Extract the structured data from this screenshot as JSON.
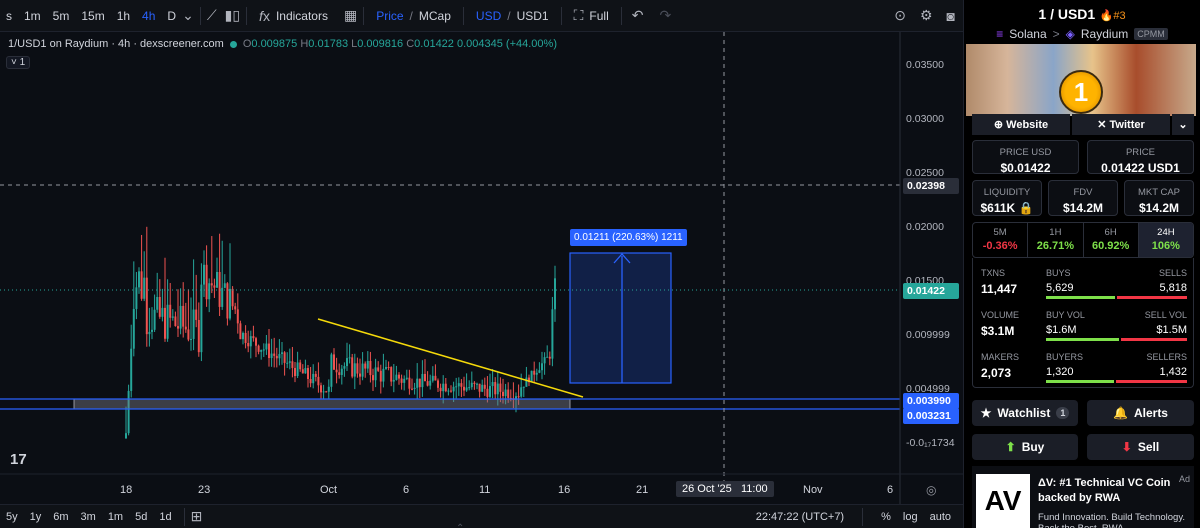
{
  "toolbar": {
    "timeframes": [
      "s",
      "1m",
      "5m",
      "15m",
      "1h",
      "4h",
      "D"
    ],
    "active_timeframe": "4h",
    "indicators_label": "Indicators",
    "price_label": "Price",
    "mcap_label": "MCap",
    "usd_label": "USD",
    "quote_label": "USD1",
    "full_label": "Full",
    "sep": "/"
  },
  "legend": {
    "title": "1/USD1 on Raydium · 4h · dexscreener.com",
    "o_key": "O",
    "o": "0.009875",
    "h_key": "H",
    "h": "0.01783",
    "l_key": "L",
    "l": "0.009816",
    "c_key": "C",
    "c": "0.01422",
    "change": "0.004345 (+44.00%)",
    "collapse": "˅ 1"
  },
  "price_axis": {
    "ticks": [
      "0.03500",
      "0.03000",
      "0.02500",
      "0.02000",
      "0.01500",
      "0.009999",
      "0.004999",
      "-0.0₁₇1734"
    ],
    "crosshair_price": "0.02398",
    "current_price": "0.01422",
    "level_1": "0.003990",
    "level_2": "0.003231"
  },
  "measure_label": "0.01211 (220.63%) 1211",
  "time_axis": {
    "ticks": [
      "18",
      "23",
      "Oct",
      "6",
      "11",
      "16",
      "21",
      "Nov",
      "6"
    ],
    "crosshair_time": "26 Oct '25   11:00"
  },
  "bottombar": {
    "ranges": [
      "5y",
      "1y",
      "6m",
      "3m",
      "1m",
      "5d",
      "1d"
    ],
    "clock": "22:47:22 (UTC+7)",
    "percent": "%",
    "log": "log",
    "auto": "auto"
  },
  "panel": {
    "pair": "1 / USD1",
    "rank": "#3",
    "chain": "Solana",
    "dex": "Raydium",
    "dex_type": "CPMM",
    "coin_glyph": "1",
    "website": "Website",
    "twitter": "Twitter",
    "price_usd_label": "PRICE USD",
    "price_usd": "$0.01422",
    "price_label": "PRICE",
    "price": "0.01422 USD1",
    "liquidity_label": "LIQUIDITY",
    "liquidity": "$611K",
    "fdv_label": "FDV",
    "fdv": "$14.2M",
    "mcap_label": "MKT CAP",
    "mcap": "$14.2M",
    "changes": [
      {
        "label": "5M",
        "value": "-0.36%"
      },
      {
        "label": "1H",
        "value": "26.71%"
      },
      {
        "label": "6H",
        "value": "60.92%"
      },
      {
        "label": "24H",
        "value": "106%"
      }
    ],
    "txns_label": "TXNS",
    "txns": "11,447",
    "buys_label": "BUYS",
    "buys": "5,629",
    "sells_label": "SELLS",
    "sells": "5,818",
    "volume_label": "VOLUME",
    "volume": "$3.1M",
    "buyvol_label": "BUY VOL",
    "buyvol": "$1.6M",
    "sellvol_label": "SELL VOL",
    "sellvol": "$1.5M",
    "makers_label": "MAKERS",
    "makers": "2,073",
    "buyers_label": "BUYERS",
    "buyers": "1,320",
    "sellers_label": "SELLERS",
    "sellers": "1,432",
    "buy_share": {
      "txns": 0.49,
      "volume": 0.52,
      "makers": 0.48
    },
    "watchlist": "Watchlist",
    "watchlist_count": "1",
    "alerts": "Alerts",
    "buy": "Buy",
    "sell": "Sell",
    "ad_logo": "AV",
    "ad_title": "ΔV: #1 Technical VC Coin backed by RWA",
    "ad_sub": "Fund Innovation. Build Technology. Back the Best. RWA",
    "ad_tag": "Ad"
  },
  "colors": {
    "up": "#26a69a",
    "down": "#ef5350",
    "accent": "#2962ff",
    "trendline": "#f5d90a"
  },
  "chart_data": {
    "type": "candlestick",
    "series_shape": "sharp spike near 18-19, choppy decline through early Oct into a descending triangle, breakout on 15-16",
    "ylim": [
      -0.002,
      0.037
    ],
    "support_band": [
      0.003231,
      0.00399
    ],
    "measure": {
      "from": 0.00549,
      "to": 0.0176,
      "label": "0.01211 (220.63%) 1211"
    }
  }
}
